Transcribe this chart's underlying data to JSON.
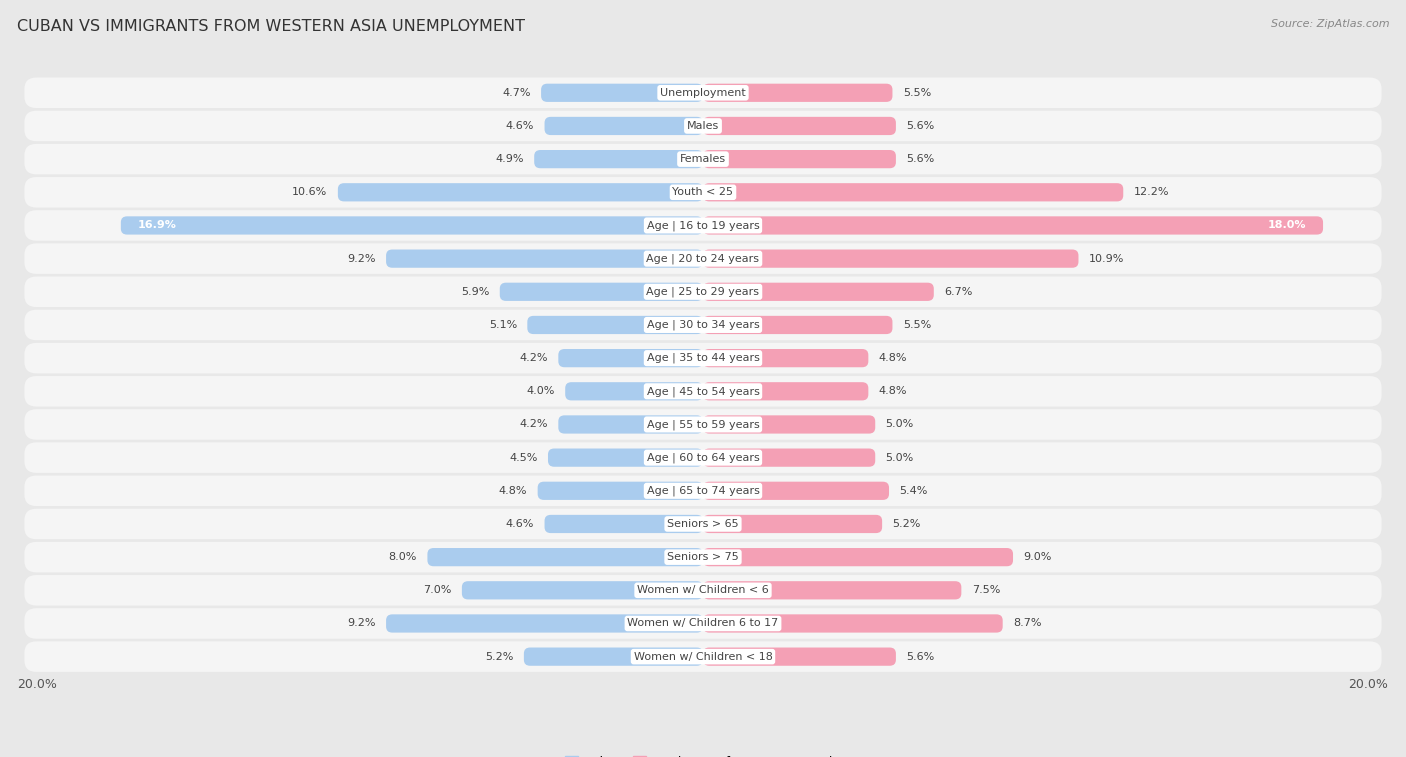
{
  "title": "CUBAN VS IMMIGRANTS FROM WESTERN ASIA UNEMPLOYMENT",
  "source": "Source: ZipAtlas.com",
  "categories": [
    "Unemployment",
    "Males",
    "Females",
    "Youth < 25",
    "Age | 16 to 19 years",
    "Age | 20 to 24 years",
    "Age | 25 to 29 years",
    "Age | 30 to 34 years",
    "Age | 35 to 44 years",
    "Age | 45 to 54 years",
    "Age | 55 to 59 years",
    "Age | 60 to 64 years",
    "Age | 65 to 74 years",
    "Seniors > 65",
    "Seniors > 75",
    "Women w/ Children < 6",
    "Women w/ Children 6 to 17",
    "Women w/ Children < 18"
  ],
  "cuban": [
    4.7,
    4.6,
    4.9,
    10.6,
    16.9,
    9.2,
    5.9,
    5.1,
    4.2,
    4.0,
    4.2,
    4.5,
    4.8,
    4.6,
    8.0,
    7.0,
    9.2,
    5.2
  ],
  "western_asia": [
    5.5,
    5.6,
    5.6,
    12.2,
    18.0,
    10.9,
    6.7,
    5.5,
    4.8,
    4.8,
    5.0,
    5.0,
    5.4,
    5.2,
    9.0,
    7.5,
    8.7,
    5.6
  ],
  "cuban_color": "#aaccee",
  "western_asia_color": "#f4a0b5",
  "row_bg_color": "#e8e8e8",
  "bar_bg_color": "#f5f5f5",
  "max_val": 20.0,
  "legend_cuban": "Cuban",
  "legend_western": "Immigrants from Western Asia",
  "axis_label": "20.0%",
  "label_color": "#555555",
  "title_color": "#333333",
  "source_color": "#888888",
  "value_label_color": "#444444",
  "cat_label_color": "#444444"
}
